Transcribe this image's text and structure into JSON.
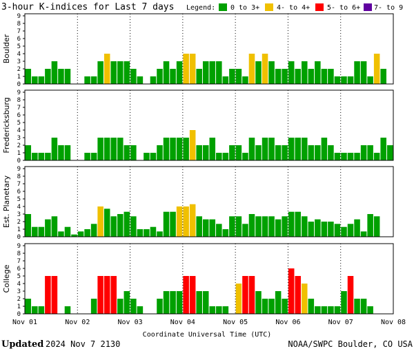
{
  "chart_data": {
    "type": "bar",
    "title": "3-hour K-indices for Last 7 days",
    "legend": {
      "label": "Legend:",
      "placement": "top-right",
      "items": [
        {
          "label": "0 to 3+",
          "color": "#00a000"
        },
        {
          "label": "4- to 4+",
          "color": "#f0c000"
        },
        {
          "label": "5- to 6+",
          "color": "#ff0000"
        },
        {
          "label": "7- to 9",
          "color": "#6000a0"
        }
      ]
    },
    "xlabel": "Coordinate Universal Time (UTC)",
    "x_ticks": [
      "Nov 01",
      "Nov 02",
      "Nov 03",
      "Nov 04",
      "Nov 05",
      "Nov 06",
      "Nov 07",
      "Nov 08"
    ],
    "ylim": [
      0,
      9
    ],
    "y_ticks": [
      "0",
      "1",
      "2",
      "3",
      "4",
      "5",
      "6",
      "7",
      "8",
      "9"
    ],
    "grid": "dotted vertical at day boundaries",
    "panels": [
      {
        "name": "Boulder",
        "values": [
          2,
          1,
          1,
          2,
          3,
          2,
          2,
          0,
          0,
          1,
          1,
          3,
          4,
          3,
          3,
          3,
          2,
          1,
          0,
          1,
          2,
          3,
          2,
          3,
          4,
          4,
          2,
          3,
          3,
          3,
          1,
          2,
          2,
          1,
          4,
          3,
          4,
          3,
          2,
          2,
          3,
          2,
          3,
          2,
          3,
          2,
          2,
          1,
          1,
          1,
          3,
          3,
          1,
          4,
          2,
          0
        ]
      },
      {
        "name": "Fredericksburg",
        "values": [
          2,
          1,
          1,
          1,
          3,
          2,
          2,
          0,
          0,
          1,
          1,
          3,
          3,
          3,
          3,
          2,
          2,
          0,
          1,
          1,
          2,
          3,
          3,
          3,
          3,
          4,
          2,
          2,
          3,
          1,
          1,
          2,
          2,
          1,
          3,
          2,
          3,
          3,
          2,
          2,
          3,
          3,
          3,
          2,
          2,
          3,
          2,
          1,
          1,
          1,
          1,
          2,
          2,
          1,
          3,
          2,
          0
        ]
      },
      {
        "name": "Est. Planetary",
        "values": [
          3,
          1.3,
          1.3,
          2.3,
          2.7,
          0.7,
          1.3,
          0.3,
          0.7,
          1,
          1.7,
          4,
          3.7,
          2.7,
          3,
          3.3,
          2.7,
          1,
          1,
          1.3,
          0.7,
          3.3,
          3.3,
          4,
          4,
          4.3,
          2.7,
          2.3,
          2.3,
          1.7,
          1,
          2.7,
          2.7,
          1.7,
          3,
          2.7,
          2.7,
          2.7,
          2.3,
          2.7,
          3.3,
          3.3,
          2.7,
          2,
          2.3,
          2,
          2,
          1.7,
          1.3,
          1.7,
          2.3,
          0.7,
          3,
          2.7
        ]
      },
      {
        "name": "College",
        "values": [
          2,
          1,
          1,
          5,
          5,
          0,
          1,
          0,
          0,
          0,
          2,
          5,
          5,
          5,
          2,
          3,
          2,
          1,
          0,
          0,
          2,
          3,
          3,
          3,
          5,
          5,
          3,
          3,
          1,
          1,
          1,
          0,
          4,
          5,
          5,
          3,
          2,
          2,
          3,
          2,
          6,
          5,
          4,
          2,
          1,
          1,
          1,
          1,
          3,
          5,
          2,
          2,
          1,
          0
        ]
      }
    ]
  },
  "footer": {
    "updated_label": "Updated",
    "updated_time": "2024 Nov  7 2130",
    "source": "NOAA/SWPC Boulder, CO USA"
  }
}
